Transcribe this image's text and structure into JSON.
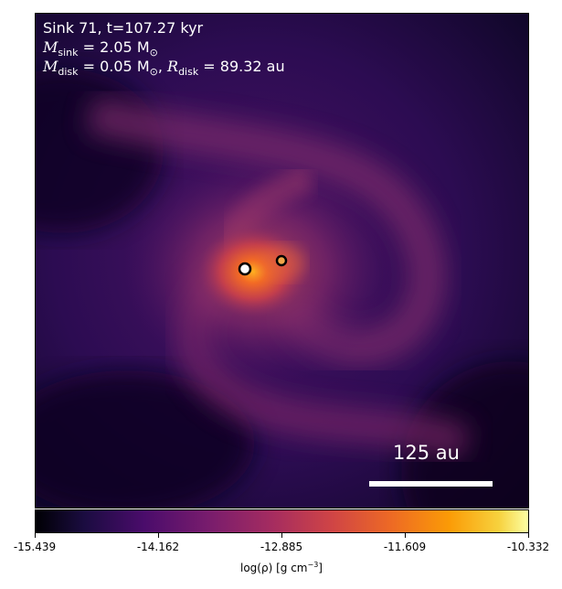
{
  "panel": {
    "sink_label": "Sink 71, t=107.27 kyr",
    "msink_symbol": "M",
    "msink_sub": "sink",
    "msink_value": " = 2.05 M",
    "msink_unit_sub": "⊙",
    "mdisk_symbol": "M",
    "mdisk_sub": "disk",
    "mdisk_value": " = 0.05 M",
    "mdisk_unit_sub": "⊙",
    "rdisk_sep": ", ",
    "rdisk_symbol": "R",
    "rdisk_sub": "disk",
    "rdisk_value": " = 89.32 au",
    "scalebar_label": "125 au"
  },
  "colorbar": {
    "ticks": [
      "-15.439",
      "-14.162",
      "-12.885",
      "-11.609",
      "-10.332"
    ],
    "axis_label_prefix": "log(ρ) [g cm",
    "axis_label_exp": "−3",
    "axis_label_suffix": "]",
    "colormap": "inferno"
  },
  "colors": {
    "background": "#1a0a36",
    "disk": "#a3385a",
    "core": "#ff7a1a",
    "sink_marker_fill": "#ffffff",
    "sink_marker_edge": "#000000"
  }
}
